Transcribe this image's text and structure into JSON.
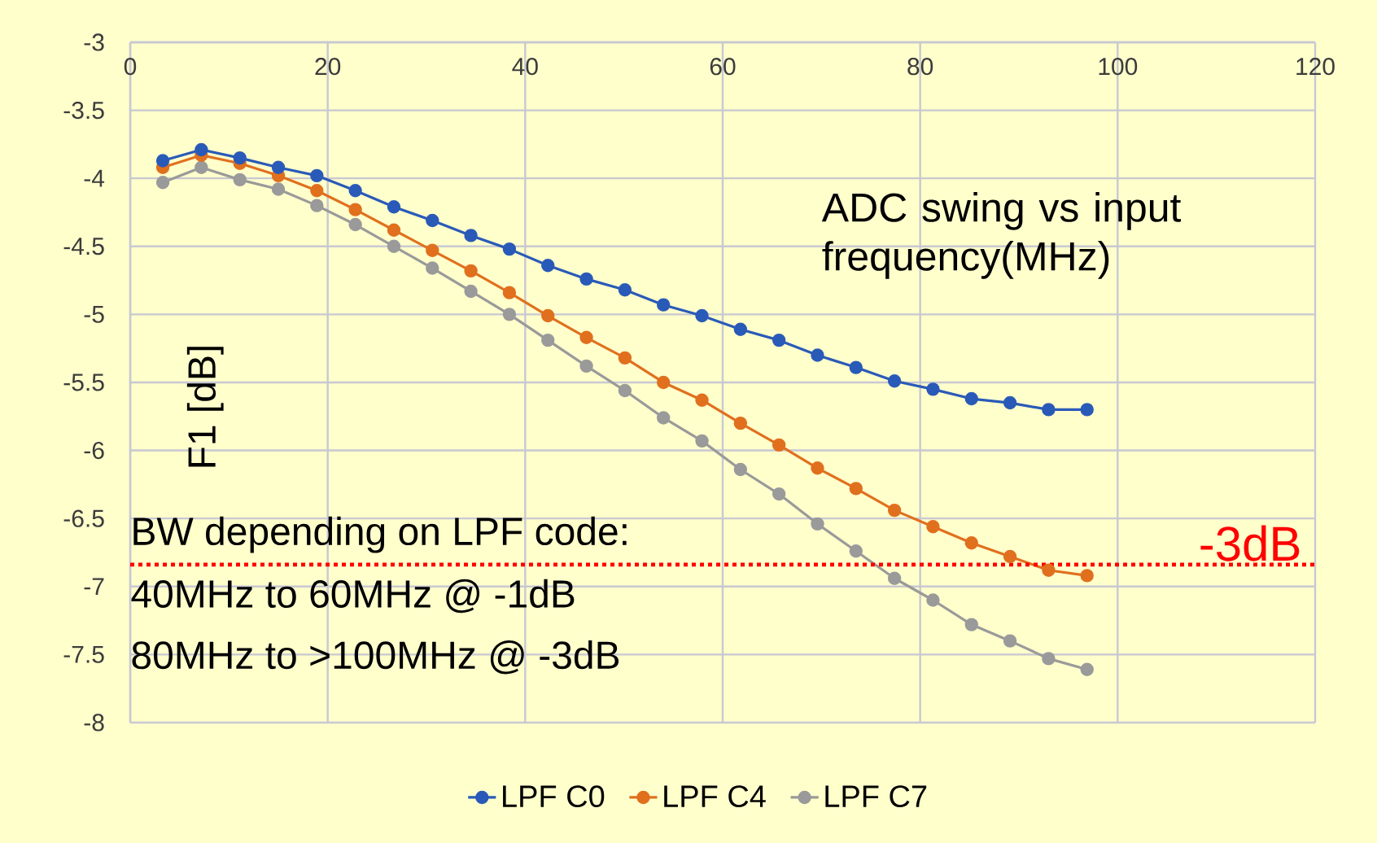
{
  "chart_data": {
    "type": "line",
    "xlabel": "ADC swing vs input frequency(MHz)",
    "ylabel": "F1 [dB]",
    "x": [
      3.3,
      7.2,
      11.1,
      15.0,
      18.9,
      22.8,
      26.7,
      30.6,
      34.5,
      38.4,
      42.3,
      46.2,
      50.1,
      54.0,
      57.9,
      61.8,
      65.7,
      69.6,
      73.5,
      77.4,
      81.3,
      85.2,
      89.1,
      93.0,
      96.9
    ],
    "series": [
      {
        "name": "LPF C0",
        "color": "#2a5ab8",
        "values": [
          -3.87,
          -3.79,
          -3.85,
          -3.92,
          -3.98,
          -4.09,
          -4.21,
          -4.31,
          -4.42,
          -4.52,
          -4.64,
          -4.74,
          -4.82,
          -4.93,
          -5.01,
          -5.11,
          -5.19,
          -5.3,
          -5.39,
          -5.49,
          -5.55,
          -5.62,
          -5.65,
          -5.7,
          -5.7
        ]
      },
      {
        "name": "LPF C4",
        "color": "#e0701e",
        "values": [
          -3.92,
          -3.83,
          -3.89,
          -3.98,
          -4.09,
          -4.23,
          -4.38,
          -4.53,
          -4.68,
          -4.84,
          -5.01,
          -5.17,
          -5.32,
          -5.5,
          -5.63,
          -5.8,
          -5.96,
          -6.13,
          -6.28,
          -6.44,
          -6.56,
          -6.68,
          -6.78,
          -6.88,
          -6.92
        ]
      },
      {
        "name": "LPF C7",
        "color": "#9a9a9a",
        "values": [
          -4.03,
          -3.92,
          -4.01,
          -4.08,
          -4.2,
          -4.34,
          -4.5,
          -4.66,
          -4.83,
          -5.0,
          -5.19,
          -5.38,
          -5.56,
          -5.76,
          -5.93,
          -6.14,
          -6.32,
          -6.54,
          -6.74,
          -6.94,
          -7.1,
          -7.28,
          -7.4,
          -7.53,
          -7.61
        ]
      }
    ],
    "xlim": [
      0,
      120
    ],
    "xticks": [
      0,
      20,
      40,
      60,
      80,
      100,
      120
    ],
    "ylim": [
      -8,
      -3
    ],
    "yticks": [
      -3,
      -3.5,
      -4,
      -4.5,
      -5,
      -5.5,
      -6,
      -6.5,
      -7,
      -7.5,
      -8
    ],
    "ref_lines": [
      {
        "axis": "y",
        "value": -6.84,
        "label": "-3dB",
        "color": "#ff0000",
        "line_style": "dotted"
      }
    ],
    "annotations": [
      "BW depending on LPF code:",
      "40MHz to 60MHz @ -1dB",
      "80MHz to >100MHz @ -3dB"
    ],
    "grid": true,
    "legend": "bottom",
    "marker": "circle",
    "line_style": "solid"
  }
}
